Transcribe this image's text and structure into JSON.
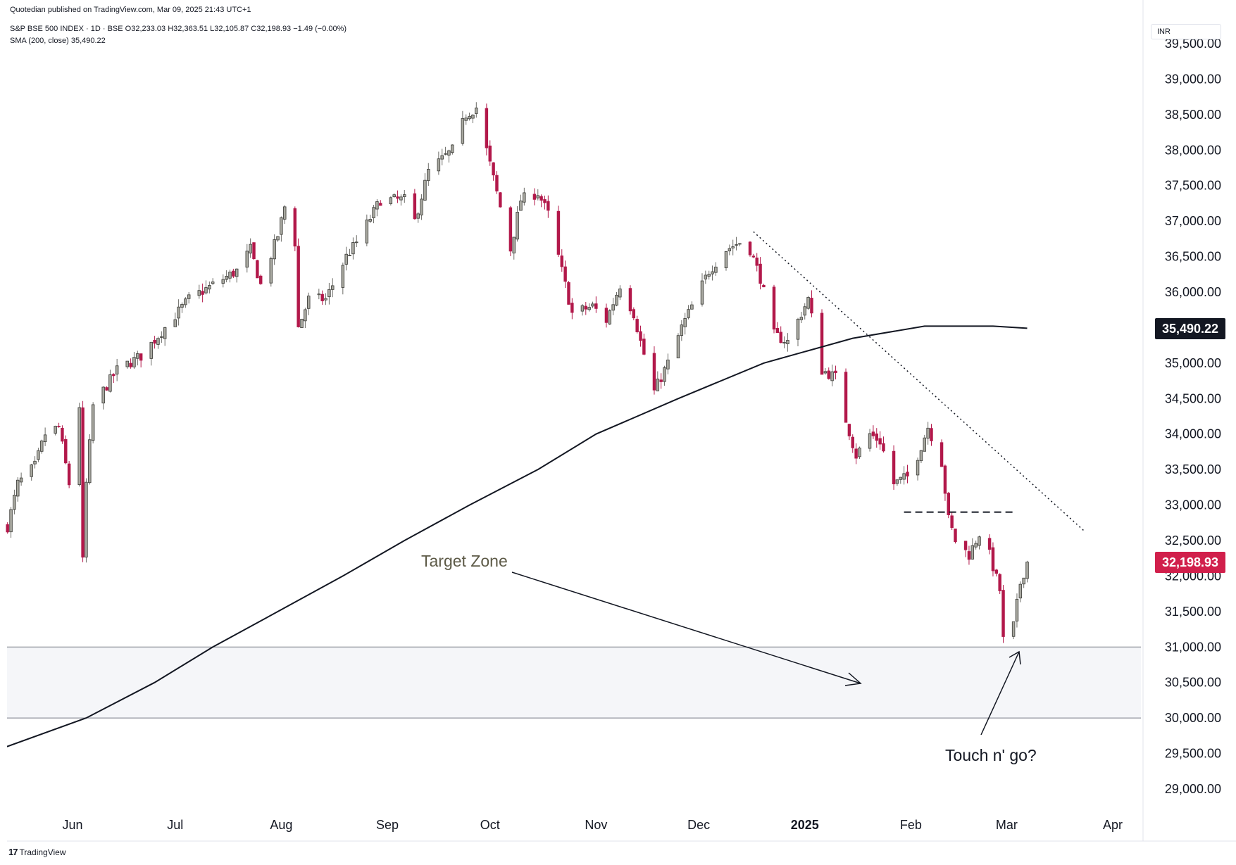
{
  "header": {
    "published": "Quotedian published on TradingView.com, Mar 09, 2025 21:43 UTC+1",
    "symbol_line": "S&P BSE 500 INDEX · 1D · BSE",
    "open": "O32,233.03",
    "high": "H32,363.51",
    "low": "L32,105.87",
    "close": "C32,198.93",
    "change": "−1.49 (−0.00%)",
    "sma_label": "SMA (200, close)",
    "sma_value": "35,490.22"
  },
  "currency": "INR",
  "brand": {
    "logo": "17",
    "name": "TradingView"
  },
  "colors": {
    "down": "#b2184a",
    "up": "#a8a8a0",
    "sma": "#131722",
    "zone": "#f5f6f9",
    "price_badge": "#d11f4b",
    "sma_badge": "#131722"
  },
  "badges": {
    "sma": "35,490.22",
    "price": "32,198.93"
  },
  "annotations": {
    "target_zone": "Target Zone",
    "touch": "Touch n' go?"
  },
  "chart_data": {
    "type": "candlestick",
    "title": "S&P BSE 500 INDEX · 1D · BSE",
    "ylim": [
      28700,
      39500
    ],
    "y_ticks": [
      "29,000.00",
      "29,500.00",
      "30,000.00",
      "30,500.00",
      "31,000.00",
      "31,500.00",
      "32,000.00",
      "32,500.00",
      "33,000.00",
      "33,500.00",
      "34,000.00",
      "34,500.00",
      "35,000.00",
      "35,500.00",
      "36,000.00",
      "36,500.00",
      "37,000.00",
      "37,500.00",
      "38,000.00",
      "38,500.00",
      "39,000.00",
      "39,500.00"
    ],
    "y_tick_values": [
      29000,
      29500,
      30000,
      30500,
      31000,
      31500,
      32000,
      32500,
      33000,
      33500,
      34000,
      34500,
      35000,
      35500,
      36000,
      36500,
      37000,
      37500,
      38000,
      38500,
      39000,
      39500
    ],
    "x_ticks": [
      {
        "label": "Jun",
        "date": "2024-06-01"
      },
      {
        "label": "Jul",
        "date": "2024-07-01"
      },
      {
        "label": "Aug",
        "date": "2024-08-01"
      },
      {
        "label": "Sep",
        "date": "2024-09-01"
      },
      {
        "label": "Oct",
        "date": "2024-10-01"
      },
      {
        "label": "Nov",
        "date": "2024-11-01"
      },
      {
        "label": "Dec",
        "date": "2024-12-01"
      },
      {
        "label": "2025",
        "date": "2025-01-01",
        "bold": true
      },
      {
        "label": "Feb",
        "date": "2025-02-01"
      },
      {
        "label": "Mar",
        "date": "2025-03-01"
      },
      {
        "label": "Apr",
        "date": "2025-04-01"
      }
    ],
    "date_range": [
      "2024-05-13",
      "2025-04-08"
    ],
    "close_path": [
      [
        "2024-05-13",
        32700
      ],
      [
        "2024-05-16",
        33300
      ],
      [
        "2024-05-21",
        33550
      ],
      [
        "2024-05-24",
        34000
      ],
      [
        "2024-05-28",
        34100
      ],
      [
        "2024-05-31",
        33300
      ],
      [
        "2024-06-03",
        34400
      ],
      [
        "2024-06-04",
        32200
      ],
      [
        "2024-06-05",
        33300
      ],
      [
        "2024-06-07",
        34400
      ],
      [
        "2024-06-14",
        34900
      ],
      [
        "2024-06-21",
        35100
      ],
      [
        "2024-06-28",
        35500
      ],
      [
        "2024-07-05",
        35900
      ],
      [
        "2024-07-12",
        36100
      ],
      [
        "2024-07-19",
        36300
      ],
      [
        "2024-07-23",
        36600
      ],
      [
        "2024-07-26",
        36100
      ],
      [
        "2024-07-31",
        36800
      ],
      [
        "2024-08-02",
        37200
      ],
      [
        "2024-08-05",
        36700
      ],
      [
        "2024-08-06",
        35500
      ],
      [
        "2024-08-09",
        35900
      ],
      [
        "2024-08-14",
        35900
      ],
      [
        "2024-08-20",
        36500
      ],
      [
        "2024-08-23",
        36700
      ],
      [
        "2024-08-30",
        37300
      ],
      [
        "2024-09-06",
        37300
      ],
      [
        "2024-09-09",
        37000
      ],
      [
        "2024-09-13",
        37700
      ],
      [
        "2024-09-20",
        38000
      ],
      [
        "2024-09-24",
        38500
      ],
      [
        "2024-09-27",
        38600
      ],
      [
        "2024-09-30",
        38000
      ],
      [
        "2024-10-03",
        37400
      ],
      [
        "2024-10-07",
        36600
      ],
      [
        "2024-10-10",
        37300
      ],
      [
        "2024-10-15",
        37400
      ],
      [
        "2024-10-18",
        37100
      ],
      [
        "2024-10-22",
        36300
      ],
      [
        "2024-10-25",
        35700
      ],
      [
        "2024-10-31",
        35800
      ],
      [
        "2024-11-04",
        35600
      ],
      [
        "2024-11-08",
        36100
      ],
      [
        "2024-11-12",
        35700
      ],
      [
        "2024-11-14",
        35300
      ],
      [
        "2024-11-18",
        34600
      ],
      [
        "2024-11-22",
        35000
      ],
      [
        "2024-11-26",
        35500
      ],
      [
        "2024-11-29",
        35800
      ],
      [
        "2024-12-04",
        36300
      ],
      [
        "2024-12-09",
        36600
      ],
      [
        "2024-12-13",
        36700
      ],
      [
        "2024-12-16",
        36600
      ],
      [
        "2024-12-19",
        36200
      ],
      [
        "2024-12-23",
        35400
      ],
      [
        "2024-12-27",
        35300
      ],
      [
        "2025-01-02",
        35900
      ],
      [
        "2025-01-06",
        34900
      ],
      [
        "2025-01-10",
        34800
      ],
      [
        "2025-01-13",
        34200
      ],
      [
        "2025-01-16",
        33700
      ],
      [
        "2025-01-20",
        34000
      ],
      [
        "2025-01-23",
        33900
      ],
      [
        "2025-01-27",
        33300
      ],
      [
        "2025-01-31",
        33400
      ],
      [
        "2025-02-03",
        33700
      ],
      [
        "2025-02-06",
        34100
      ],
      [
        "2025-02-10",
        33600
      ],
      [
        "2025-02-12",
        32800
      ],
      [
        "2025-02-14",
        32500
      ],
      [
        "2025-02-18",
        32300
      ],
      [
        "2025-02-21",
        32600
      ],
      [
        "2025-02-24",
        32300
      ],
      [
        "2025-02-27",
        31800
      ],
      [
        "2025-02-28",
        31100
      ],
      [
        "2025-03-03",
        31300
      ],
      [
        "2025-03-05",
        31900
      ],
      [
        "2025-03-07",
        32199
      ]
    ],
    "sma_200": {
      "name": "SMA (200, close)",
      "points": [
        [
          "2024-05-13",
          29600
        ],
        [
          "2024-06-05",
          30000
        ],
        [
          "2024-06-25",
          30500
        ],
        [
          "2024-07-12",
          31000
        ],
        [
          "2024-07-31",
          31500
        ],
        [
          "2024-08-19",
          32000
        ],
        [
          "2024-09-06",
          32500
        ],
        [
          "2024-09-25",
          33000
        ],
        [
          "2024-10-15",
          33500
        ],
        [
          "2024-11-01",
          34000
        ],
        [
          "2024-11-25",
          34500
        ],
        [
          "2024-12-20",
          35000
        ],
        [
          "2025-01-15",
          35350
        ],
        [
          "2025-02-05",
          35520
        ],
        [
          "2025-02-25",
          35520
        ],
        [
          "2025-03-07",
          35490
        ]
      ]
    },
    "zone": {
      "label": "Target Zone",
      "low": 30000,
      "high": 31000
    },
    "downtrend_line": [
      [
        "2024-12-17",
        36850
      ],
      [
        "2025-03-24",
        32620
      ]
    ],
    "support_line": {
      "y": 32900,
      "from": "2025-01-30",
      "to": "2025-03-03"
    }
  }
}
